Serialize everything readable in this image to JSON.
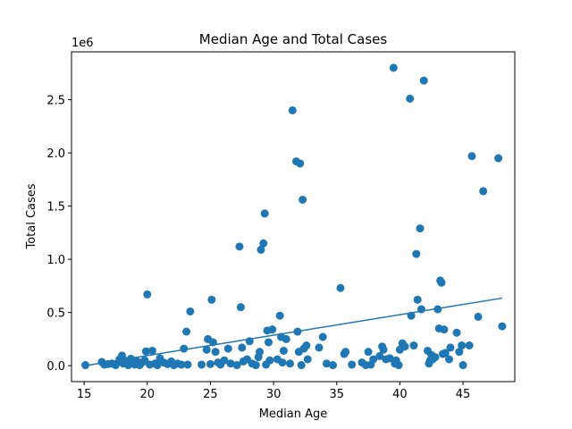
{
  "chart_data": {
    "type": "scatter",
    "title": "Median Age and Total Cases",
    "xlabel": "Median Age",
    "ylabel": "Total Cases",
    "y_multiplier_label": "1e6",
    "xlim": [
      14.0,
      49.1
    ],
    "ylim": [
      -150000,
      2950000
    ],
    "x_ticks": [
      15,
      20,
      25,
      30,
      35,
      40,
      45
    ],
    "x_tick_labels": [
      "15",
      "20",
      "25",
      "30",
      "35",
      "40",
      "45"
    ],
    "y_ticks": [
      0,
      500000,
      1000000,
      1500000,
      2000000,
      2500000
    ],
    "y_tick_labels": [
      "0.0",
      "0.5",
      "1.0",
      "1.5",
      "2.0",
      "2.5"
    ],
    "grid": false,
    "marker_color": "#1f77b4",
    "line_color": "#1f77b4",
    "series": [
      {
        "kind": "points",
        "points": [
          [
            15.1,
            5000
          ],
          [
            16.4,
            35000
          ],
          [
            16.6,
            10000
          ],
          [
            16.9,
            15000
          ],
          [
            17.2,
            20000
          ],
          [
            17.5,
            5000
          ],
          [
            17.8,
            60000
          ],
          [
            18.0,
            95000
          ],
          [
            18.1,
            20000
          ],
          [
            18.3,
            45000
          ],
          [
            18.5,
            5000
          ],
          [
            18.7,
            65000
          ],
          [
            18.9,
            25000
          ],
          [
            19.0,
            10000
          ],
          [
            19.2,
            40000
          ],
          [
            19.4,
            5000
          ],
          [
            19.6,
            30000
          ],
          [
            19.8,
            50000
          ],
          [
            19.9,
            135000
          ],
          [
            20.0,
            670000
          ],
          [
            20.2,
            10000
          ],
          [
            20.4,
            140000
          ],
          [
            20.6,
            20000
          ],
          [
            20.8,
            5000
          ],
          [
            21.0,
            70000
          ],
          [
            21.3,
            30000
          ],
          [
            21.6,
            15000
          ],
          [
            21.9,
            40000
          ],
          [
            22.1,
            5000
          ],
          [
            22.4,
            20000
          ],
          [
            22.7,
            10000
          ],
          [
            22.9,
            160000
          ],
          [
            23.1,
            320000
          ],
          [
            23.2,
            10000
          ],
          [
            23.4,
            510000
          ],
          [
            24.3,
            10000
          ],
          [
            24.7,
            150000
          ],
          [
            24.8,
            250000
          ],
          [
            25.0,
            15000
          ],
          [
            25.1,
            620000
          ],
          [
            25.2,
            220000
          ],
          [
            25.4,
            130000
          ],
          [
            25.6,
            30000
          ],
          [
            25.8,
            10000
          ],
          [
            26.1,
            50000
          ],
          [
            26.4,
            160000
          ],
          [
            26.6,
            20000
          ],
          [
            27.1,
            5000
          ],
          [
            27.3,
            1120000
          ],
          [
            27.4,
            550000
          ],
          [
            27.5,
            170000
          ],
          [
            27.6,
            40000
          ],
          [
            27.9,
            60000
          ],
          [
            28.1,
            230000
          ],
          [
            28.3,
            20000
          ],
          [
            28.6,
            5000
          ],
          [
            28.8,
            80000
          ],
          [
            28.9,
            130000
          ],
          [
            29.0,
            1090000
          ],
          [
            29.2,
            1150000
          ],
          [
            29.3,
            1430000
          ],
          [
            29.4,
            10000
          ],
          [
            29.5,
            330000
          ],
          [
            29.6,
            220000
          ],
          [
            29.7,
            50000
          ],
          [
            29.9,
            340000
          ],
          [
            30.3,
            60000
          ],
          [
            30.5,
            470000
          ],
          [
            30.6,
            270000
          ],
          [
            30.7,
            30000
          ],
          [
            30.8,
            140000
          ],
          [
            31.0,
            250000
          ],
          [
            31.3,
            20000
          ],
          [
            31.5,
            2400000
          ],
          [
            31.8,
            1920000
          ],
          [
            31.9,
            320000
          ],
          [
            32.0,
            130000
          ],
          [
            32.1,
            1900000
          ],
          [
            32.2,
            5000
          ],
          [
            32.3,
            1560000
          ],
          [
            32.4,
            160000
          ],
          [
            32.6,
            190000
          ],
          [
            32.7,
            60000
          ],
          [
            33.6,
            170000
          ],
          [
            33.9,
            270000
          ],
          [
            34.2,
            20000
          ],
          [
            34.7,
            5000
          ],
          [
            35.3,
            730000
          ],
          [
            35.6,
            110000
          ],
          [
            35.7,
            130000
          ],
          [
            36.2,
            10000
          ],
          [
            37.0,
            30000
          ],
          [
            37.3,
            5000
          ],
          [
            37.5,
            130000
          ],
          [
            37.7,
            10000
          ],
          [
            37.9,
            60000
          ],
          [
            38.4,
            90000
          ],
          [
            38.6,
            180000
          ],
          [
            38.7,
            150000
          ],
          [
            38.9,
            60000
          ],
          [
            39.2,
            70000
          ],
          [
            39.5,
            2800000
          ],
          [
            39.6,
            20000
          ],
          [
            39.7,
            50000
          ],
          [
            39.9,
            5000
          ],
          [
            40.0,
            150000
          ],
          [
            40.2,
            210000
          ],
          [
            40.4,
            180000
          ],
          [
            40.8,
            2510000
          ],
          [
            40.9,
            470000
          ],
          [
            41.1,
            190000
          ],
          [
            41.3,
            1050000
          ],
          [
            41.4,
            620000
          ],
          [
            41.6,
            1290000
          ],
          [
            41.7,
            530000
          ],
          [
            41.9,
            2680000
          ],
          [
            42.2,
            140000
          ],
          [
            42.3,
            20000
          ],
          [
            42.4,
            50000
          ],
          [
            42.5,
            100000
          ],
          [
            42.6,
            60000
          ],
          [
            42.8,
            80000
          ],
          [
            43.0,
            530000
          ],
          [
            43.1,
            350000
          ],
          [
            43.2,
            800000
          ],
          [
            43.3,
            780000
          ],
          [
            43.4,
            110000
          ],
          [
            43.5,
            340000
          ],
          [
            43.6,
            120000
          ],
          [
            43.9,
            60000
          ],
          [
            44.0,
            170000
          ],
          [
            44.5,
            310000
          ],
          [
            44.7,
            130000
          ],
          [
            44.9,
            190000
          ],
          [
            45.0,
            5000
          ],
          [
            45.5,
            190000
          ],
          [
            45.7,
            1970000
          ],
          [
            46.2,
            460000
          ],
          [
            46.6,
            1640000
          ],
          [
            47.8,
            1950000
          ],
          [
            48.1,
            370000
          ]
        ]
      },
      {
        "kind": "fit_line",
        "points": [
          [
            15.1,
            0
          ],
          [
            48.1,
            635000
          ]
        ]
      }
    ]
  }
}
